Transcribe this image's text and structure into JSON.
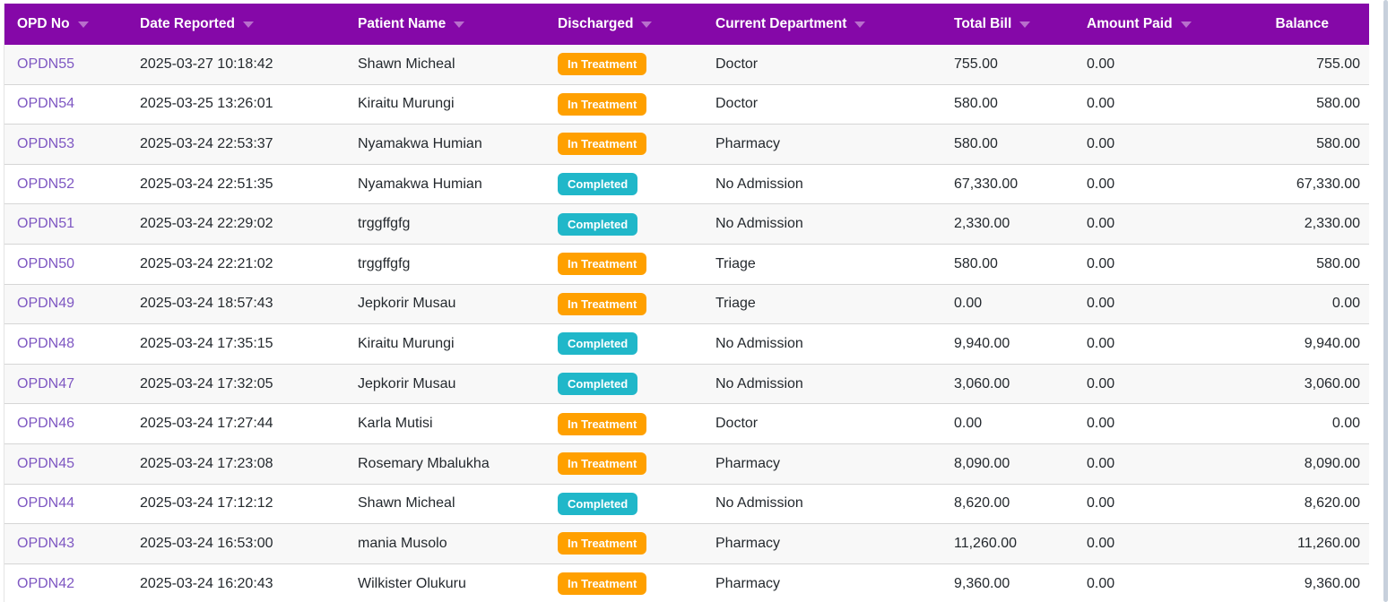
{
  "theme": {
    "header_bg": "#8508A8",
    "link_color": "#7E57C2",
    "badge_in_treatment_bg": "#FFA000",
    "badge_completed_bg": "#20B7C9"
  },
  "table": {
    "columns": [
      {
        "key": "opd_no",
        "label": "OPD No",
        "sortable": true,
        "class": "col-opd"
      },
      {
        "key": "date_reported",
        "label": "Date Reported",
        "sortable": true,
        "class": "col-date"
      },
      {
        "key": "patient_name",
        "label": "Patient Name",
        "sortable": true,
        "class": "col-patient"
      },
      {
        "key": "discharged",
        "label": "Discharged",
        "sortable": true,
        "class": "col-status"
      },
      {
        "key": "current_department",
        "label": "Current Department",
        "sortable": true,
        "class": "col-dept"
      },
      {
        "key": "total_bill",
        "label": "Total Bill",
        "sortable": true,
        "class": "col-total"
      },
      {
        "key": "amount_paid",
        "label": "Amount Paid",
        "sortable": true,
        "class": "col-paid"
      },
      {
        "key": "balance",
        "label": "Balance",
        "sortable": false,
        "class": "col-balance"
      }
    ],
    "rows": [
      {
        "opd_no": "OPDN55",
        "date_reported": "2025-03-27 10:18:42",
        "patient_name": "Shawn Micheal",
        "discharged": "In Treatment",
        "current_department": "Doctor",
        "total_bill": "755.00",
        "amount_paid": "0.00",
        "balance": "755.00"
      },
      {
        "opd_no": "OPDN54",
        "date_reported": "2025-03-25 13:26:01",
        "patient_name": "Kiraitu Murungi",
        "discharged": "In Treatment",
        "current_department": "Doctor",
        "total_bill": "580.00",
        "amount_paid": "0.00",
        "balance": "580.00"
      },
      {
        "opd_no": "OPDN53",
        "date_reported": "2025-03-24 22:53:37",
        "patient_name": "Nyamakwa Humian",
        "discharged": "In Treatment",
        "current_department": "Pharmacy",
        "total_bill": "580.00",
        "amount_paid": "0.00",
        "balance": "580.00"
      },
      {
        "opd_no": "OPDN52",
        "date_reported": "2025-03-24 22:51:35",
        "patient_name": "Nyamakwa Humian",
        "discharged": "Completed",
        "current_department": "No Admission",
        "total_bill": "67,330.00",
        "amount_paid": "0.00",
        "balance": "67,330.00"
      },
      {
        "opd_no": "OPDN51",
        "date_reported": "2025-03-24 22:29:02",
        "patient_name": "trggffgfg",
        "discharged": "Completed",
        "current_department": "No Admission",
        "total_bill": "2,330.00",
        "amount_paid": "0.00",
        "balance": "2,330.00"
      },
      {
        "opd_no": "OPDN50",
        "date_reported": "2025-03-24 22:21:02",
        "patient_name": "trggffgfg",
        "discharged": "In Treatment",
        "current_department": "Triage",
        "total_bill": "580.00",
        "amount_paid": "0.00",
        "balance": "580.00"
      },
      {
        "opd_no": "OPDN49",
        "date_reported": "2025-03-24 18:57:43",
        "patient_name": "Jepkorir Musau",
        "discharged": "In Treatment",
        "current_department": "Triage",
        "total_bill": "0.00",
        "amount_paid": "0.00",
        "balance": "0.00"
      },
      {
        "opd_no": "OPDN48",
        "date_reported": "2025-03-24 17:35:15",
        "patient_name": "Kiraitu Murungi",
        "discharged": "Completed",
        "current_department": "No Admission",
        "total_bill": "9,940.00",
        "amount_paid": "0.00",
        "balance": "9,940.00"
      },
      {
        "opd_no": "OPDN47",
        "date_reported": "2025-03-24 17:32:05",
        "patient_name": "Jepkorir Musau",
        "discharged": "Completed",
        "current_department": "No Admission",
        "total_bill": "3,060.00",
        "amount_paid": "0.00",
        "balance": "3,060.00"
      },
      {
        "opd_no": "OPDN46",
        "date_reported": "2025-03-24 17:27:44",
        "patient_name": "Karla Mutisi",
        "discharged": "In Treatment",
        "current_department": "Doctor",
        "total_bill": "0.00",
        "amount_paid": "0.00",
        "balance": "0.00"
      },
      {
        "opd_no": "OPDN45",
        "date_reported": "2025-03-24 17:23:08",
        "patient_name": "Rosemary Mbalukha",
        "discharged": "In Treatment",
        "current_department": "Pharmacy",
        "total_bill": "8,090.00",
        "amount_paid": "0.00",
        "balance": "8,090.00"
      },
      {
        "opd_no": "OPDN44",
        "date_reported": "2025-03-24 17:12:12",
        "patient_name": "Shawn Micheal",
        "discharged": "Completed",
        "current_department": "No Admission",
        "total_bill": "8,620.00",
        "amount_paid": "0.00",
        "balance": "8,620.00"
      },
      {
        "opd_no": "OPDN43",
        "date_reported": "2025-03-24 16:53:00",
        "patient_name": "mania Musolo",
        "discharged": "In Treatment",
        "current_department": "Pharmacy",
        "total_bill": "11,260.00",
        "amount_paid": "0.00",
        "balance": "11,260.00"
      },
      {
        "opd_no": "OPDN42",
        "date_reported": "2025-03-24 16:20:43",
        "patient_name": "Wilkister Olukuru",
        "discharged": "In Treatment",
        "current_department": "Pharmacy",
        "total_bill": "9,360.00",
        "amount_paid": "0.00",
        "balance": "9,360.00"
      }
    ]
  }
}
